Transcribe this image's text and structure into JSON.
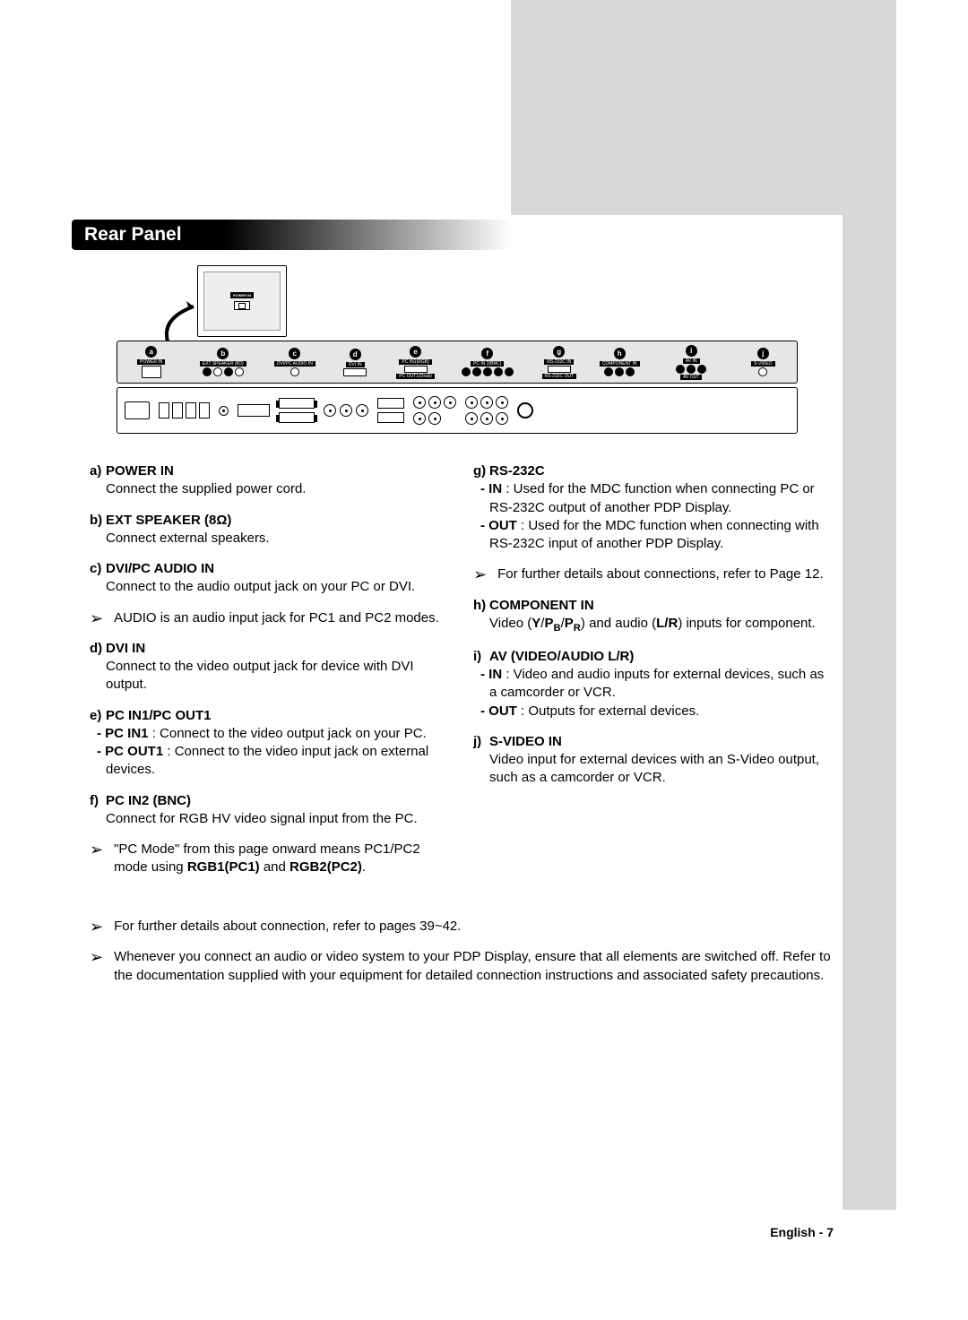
{
  "heading": "Rear Panel",
  "page_footer": "English - 7",
  "colors": {
    "side_gray": "#d8d8d8",
    "text": "#000000",
    "heading_gradient_from": "#000000",
    "heading_gradient_to": "#ffffff"
  },
  "panel_letters": [
    "a",
    "b",
    "c",
    "d",
    "e",
    "f",
    "g",
    "h",
    "i",
    "j"
  ],
  "panel_port_groups": [
    {
      "label": "POWER IN",
      "type": "power"
    },
    {
      "label": "EXT SPEAKER (8Ω)",
      "type": "rca4"
    },
    {
      "label": "DVI/PC AUDIO IN",
      "type": "jack"
    },
    {
      "label": "DVI IN",
      "type": "dvi"
    },
    {
      "label": "PC IN1(RGB) / PC OUT1(Dsub)",
      "type": "dsub2"
    },
    {
      "label": "PC IN 2(BNC)",
      "type": "bnc5"
    },
    {
      "label": "RS-232C IN / RS-232C OUT",
      "type": "dsub2"
    },
    {
      "label": "COMPONENT IN",
      "type": "rca3"
    },
    {
      "label": "AV IN / AV OUT",
      "type": "av"
    },
    {
      "label": "S-VIDEO",
      "type": "svid"
    }
  ],
  "left_col": [
    {
      "let": "a",
      "title": "POWER IN",
      "body": "Connect the supplied power cord."
    },
    {
      "let": "b",
      "title": "EXT SPEAKER (8Ω)",
      "body": "Connect external speakers."
    },
    {
      "let": "c",
      "title": "DVI/PC AUDIO IN",
      "body": "Connect to the audio output jack on your PC or DVI.",
      "note": "AUDIO is an audio input jack for PC1 and PC2 modes."
    },
    {
      "let": "d",
      "title": "DVI IN",
      "body": "Connect to the video output jack for device with DVI output."
    },
    {
      "let": "e",
      "title": "PC IN1/PC OUT1",
      "subs": [
        {
          "lbl": "PC IN1",
          "txt": ": Connect to the video output jack on your PC."
        },
        {
          "lbl": "PC OUT1",
          "txt": ": Connect to the video input jack on external devices."
        }
      ]
    },
    {
      "let": "f",
      "title": "PC IN2 (BNC)",
      "body": "Connect for RGB HV video signal input from the PC.",
      "note_html": "\"PC Mode\" from this page onward means PC1/PC2 mode using <b>RGB1(PC1)</b> and <b>RGB2(PC2)</b>."
    }
  ],
  "right_col": [
    {
      "let": "g",
      "title": "RS-232C",
      "subs": [
        {
          "lbl": "IN",
          "txt": ": Used for the MDC function when connecting PC or RS-232C output of another PDP Display."
        },
        {
          "lbl": "OUT",
          "txt": ": Used for the MDC function when connecting with RS-232C input of another PDP Display."
        }
      ],
      "note": "For further details about connections, refer to Page 12."
    },
    {
      "let": "h",
      "title": "COMPONENT IN",
      "body_html": "Video (<b>Y</b>/<b>P<span class=\"subR\">B</span></b>/<b>P<span class=\"subR\">R</span></b>) and audio (<b>L/R</b>) inputs for component."
    },
    {
      "let": "i",
      "title": "AV (VIDEO/AUDIO L/R)",
      "subs": [
        {
          "lbl": "IN",
          "txt": ": Video and audio inputs for external devices, such as a camcorder or VCR."
        },
        {
          "lbl": "OUT",
          "txt": ": Outputs for external devices."
        }
      ]
    },
    {
      "let": "j",
      "title": "S-VIDEO IN",
      "body": "Video input for external devices with an S-Video output, such as a camcorder or VCR."
    }
  ],
  "footer_notes": [
    "For further details about connection, refer to pages 39~42.",
    "Whenever you connect an audio or video system to your PDP Display, ensure that all elements are switched off. Refer to the documentation supplied with your equipment for detailed connection instructions and associated safety precautions."
  ]
}
